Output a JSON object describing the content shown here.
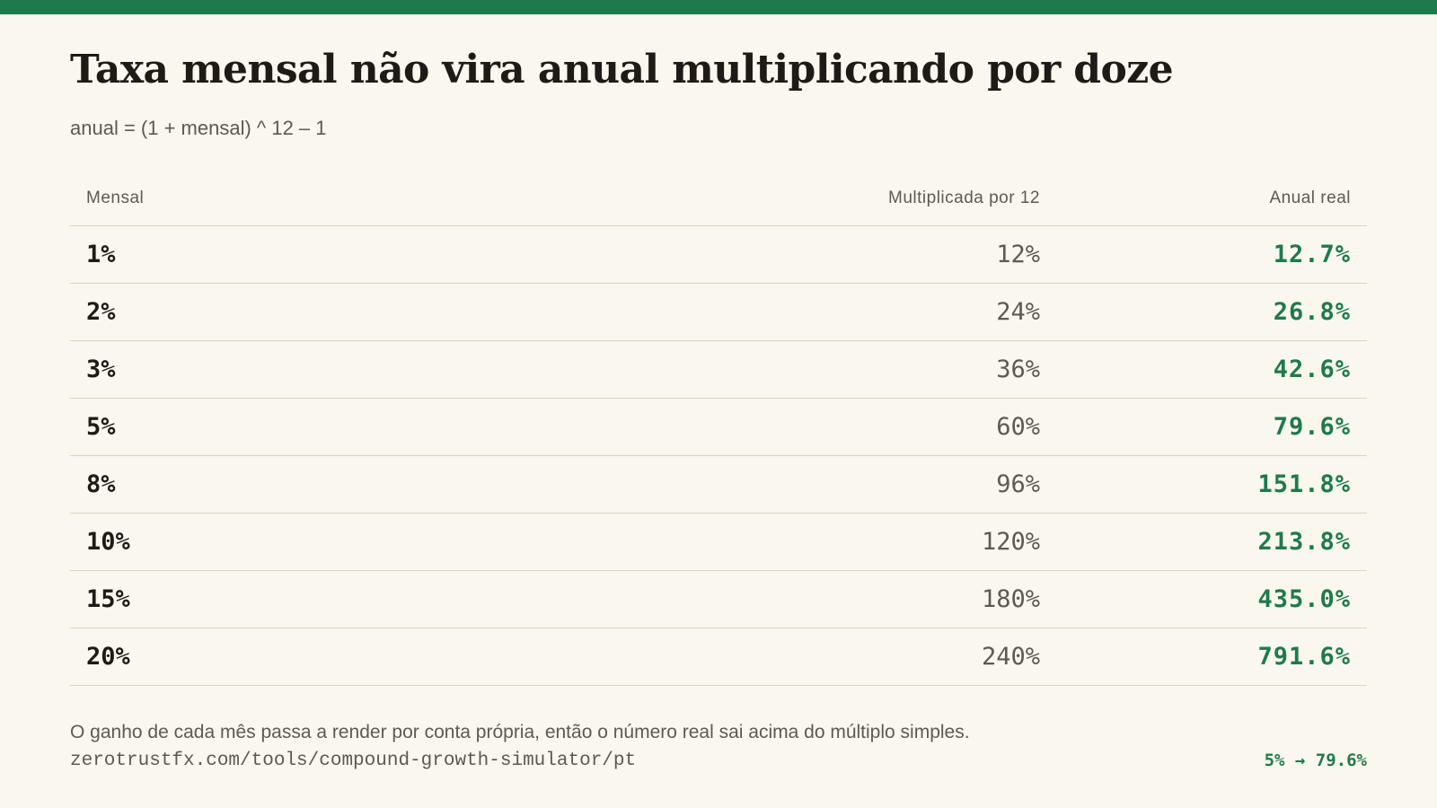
{
  "title": "Taxa mensal não vira anual multiplicando por doze",
  "subtitle": "anual = (1 + mensal) ^ 12 – 1",
  "table": {
    "headers": [
      "Mensal",
      "Multiplicada por 12",
      "Anual real"
    ],
    "rows": [
      [
        "1%",
        "12%",
        "12.7%"
      ],
      [
        "2%",
        "24%",
        "26.8%"
      ],
      [
        "3%",
        "36%",
        "42.6%"
      ],
      [
        "5%",
        "60%",
        "79.6%"
      ],
      [
        "8%",
        "96%",
        "151.8%"
      ],
      [
        "10%",
        "120%",
        "213.8%"
      ],
      [
        "15%",
        "180%",
        "435.0%"
      ],
      [
        "20%",
        "240%",
        "791.6%"
      ]
    ]
  },
  "footer": {
    "note": "O ganho de cada mês passa a render por conta própria, então o número real sai acima do múltiplo simples.",
    "url": "zerotrustfx.com/tools/compound-growth-simulator/pt",
    "callout": "5% → 79.6%"
  },
  "colors": {
    "accent": "#1e7a4d",
    "background": "#faf7ef",
    "text": "#1f1a16",
    "muted": "#5e5953",
    "rule": "#d9d4c6"
  }
}
